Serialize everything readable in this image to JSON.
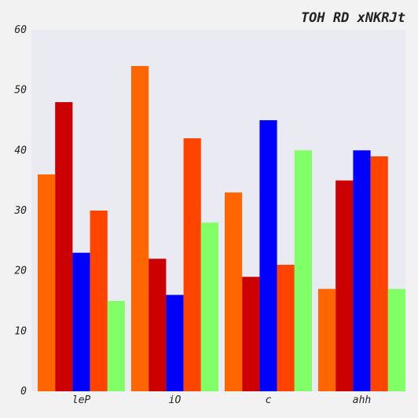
{
  "chart_data": {
    "type": "bar",
    "title": "TOH RD xNKRJt",
    "xlabel": "",
    "ylabel": "",
    "categories": [
      "leP",
      "iO",
      "c",
      "ahh"
    ],
    "ylim": [
      0,
      60
    ],
    "yticks": [
      0,
      10,
      20,
      30,
      40,
      50,
      60
    ],
    "grid": false,
    "legend": "none",
    "series": [
      {
        "color": "#ff6600",
        "values": [
          36,
          54,
          33,
          17
        ]
      },
      {
        "color": "#cc0000",
        "values": [
          48,
          22,
          19,
          35
        ]
      },
      {
        "color": "#0000ff",
        "values": [
          23,
          16,
          45,
          40
        ]
      },
      {
        "color": "#ff4400",
        "values": [
          30,
          42,
          21,
          39
        ]
      },
      {
        "color": "#80ff66",
        "values": [
          15,
          28,
          40,
          17
        ]
      }
    ],
    "colors": {
      "background": "#f2f2f2",
      "plot_background": "#eaeaf2"
    }
  }
}
